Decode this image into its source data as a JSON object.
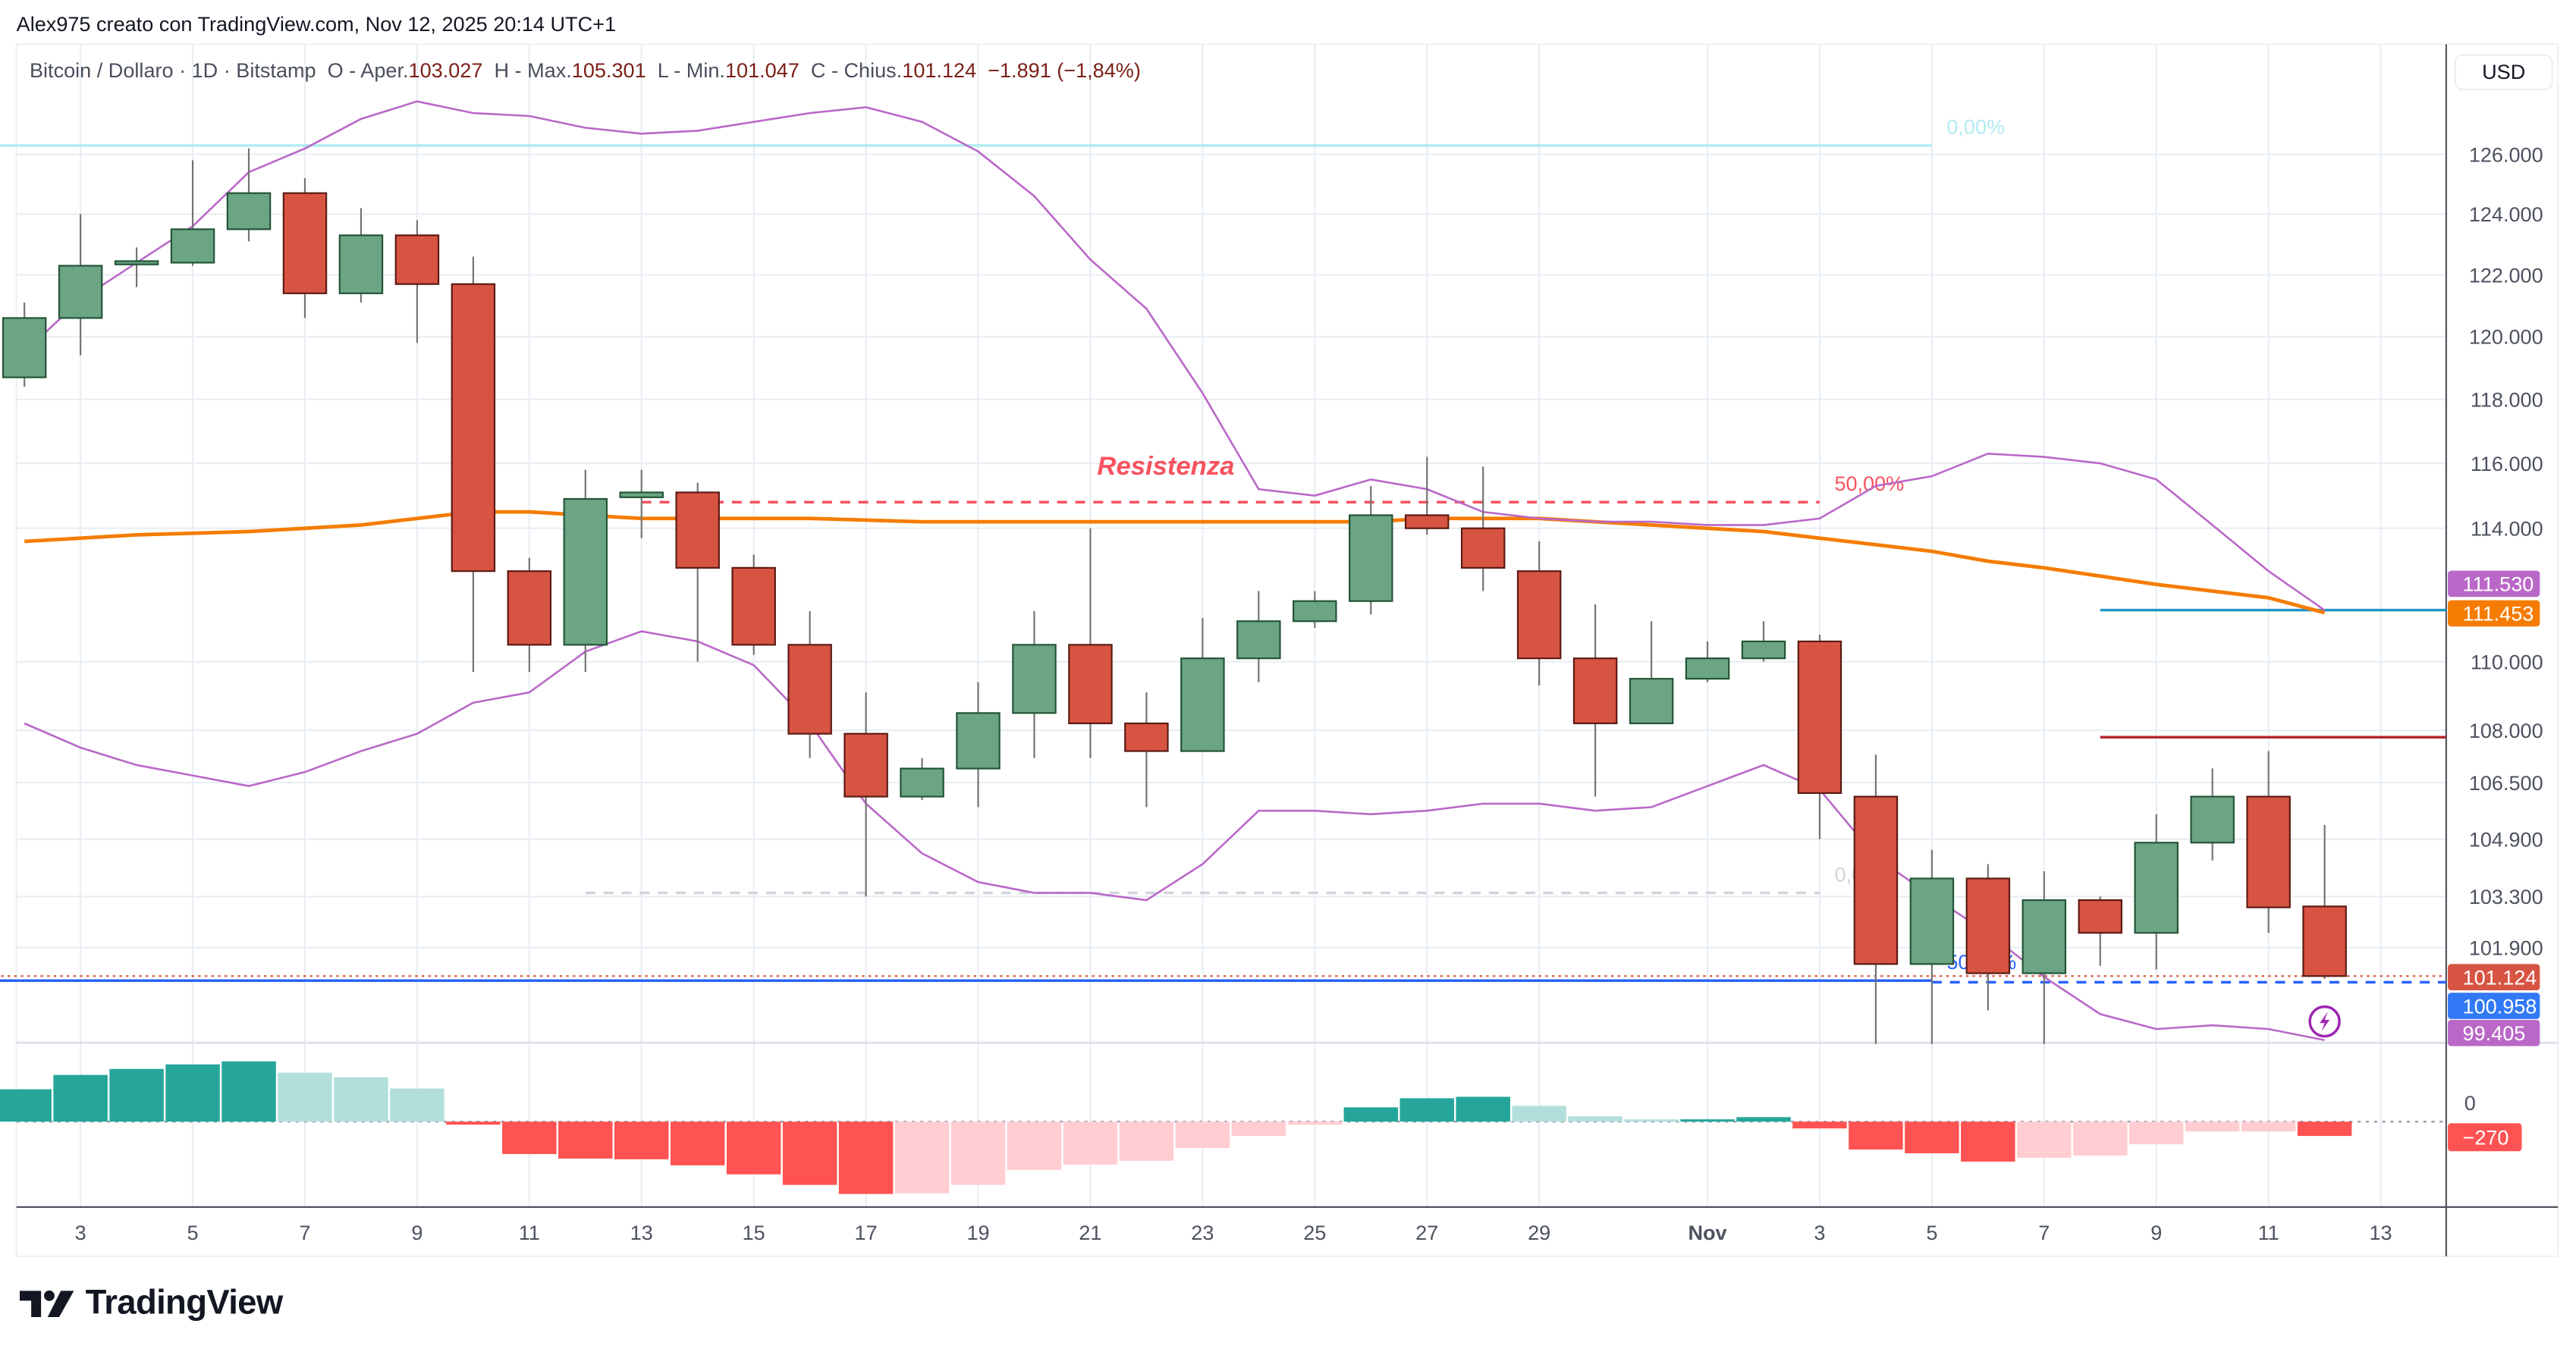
{
  "header": {
    "attribution": "Alex975 creato con TradingView.com, Nov 12, 2025 20:14 UTC+1"
  },
  "legend": {
    "symbol": "Bitcoin / Dollaro · 1D · Bitstamp",
    "open_label": "O - Aper.",
    "open": "103.027",
    "high_label": "H - Max.",
    "high": "105.301",
    "low_label": "L - Min.",
    "low": "101.047",
    "close_label": "C - Chius.",
    "close": "101.124",
    "change": "−1.891 (−1,84%)"
  },
  "currency_button": "USD",
  "brand": {
    "name": "TradingView",
    "icon": "tradingview-logo-icon"
  },
  "colors": {
    "up": "#6ba583",
    "up_border": "#225437",
    "down": "#d75442",
    "down_border": "#5b1a13",
    "band": "#ba68c8",
    "ma": "#f57c00",
    "hist_up_strong": "#26a69a",
    "hist_up_weak": "#b2dfdb",
    "hist_down_strong": "#ff5252",
    "hist_down_weak": "#ffcdd2"
  },
  "chart_data": {
    "type": "candlestick",
    "y_scale": "log",
    "y_ticks": [
      "126.000",
      "124.000",
      "122.000",
      "120.000",
      "118.000",
      "116.000",
      "114.000",
      "110.000",
      "108.000",
      "106.500",
      "104.900",
      "103.300",
      "101.900"
    ],
    "y_tick_values": [
      126000,
      124000,
      122000,
      120000,
      118000,
      116000,
      114000,
      110000,
      108000,
      106500,
      104900,
      103300,
      101900
    ],
    "x_ticks": [
      {
        "date": "2025-10-03",
        "label": "3"
      },
      {
        "date": "2025-10-05",
        "label": "5"
      },
      {
        "date": "2025-10-07",
        "label": "7"
      },
      {
        "date": "2025-10-09",
        "label": "9"
      },
      {
        "date": "2025-10-11",
        "label": "11"
      },
      {
        "date": "2025-10-13",
        "label": "13"
      },
      {
        "date": "2025-10-15",
        "label": "15"
      },
      {
        "date": "2025-10-17",
        "label": "17"
      },
      {
        "date": "2025-10-19",
        "label": "19"
      },
      {
        "date": "2025-10-21",
        "label": "21"
      },
      {
        "date": "2025-10-23",
        "label": "23"
      },
      {
        "date": "2025-10-25",
        "label": "25"
      },
      {
        "date": "2025-10-27",
        "label": "27"
      },
      {
        "date": "2025-10-29",
        "label": "29"
      },
      {
        "date": "2025-11-01",
        "label": "Nov"
      },
      {
        "date": "2025-11-03",
        "label": "3"
      },
      {
        "date": "2025-11-05",
        "label": "5"
      },
      {
        "date": "2025-11-07",
        "label": "7"
      },
      {
        "date": "2025-11-09",
        "label": "9"
      },
      {
        "date": "2025-11-11",
        "label": "11"
      },
      {
        "date": "2025-11-13",
        "label": "13"
      }
    ],
    "start_date": "2025-10-02",
    "candles": [
      [
        118700,
        121100,
        118400,
        120600
      ],
      [
        120600,
        124000,
        119400,
        122300
      ],
      [
        122350,
        122900,
        121600,
        122450
      ],
      [
        122400,
        125800,
        122300,
        123500
      ],
      [
        123500,
        126200,
        123100,
        124700
      ],
      [
        124700,
        125200,
        120600,
        121400
      ],
      [
        121400,
        124200,
        121100,
        123300
      ],
      [
        123300,
        123800,
        119800,
        121700
      ],
      [
        121700,
        122600,
        109700,
        112700
      ],
      [
        112700,
        113100,
        109700,
        110500
      ],
      [
        110500,
        115800,
        109700,
        114900
      ],
      [
        114950,
        115800,
        113700,
        115100
      ],
      [
        115100,
        115400,
        110000,
        112800
      ],
      [
        112800,
        113200,
        110200,
        110500
      ],
      [
        110500,
        111500,
        107200,
        107900
      ],
      [
        107900,
        109100,
        103300,
        106100
      ],
      [
        106100,
        107200,
        106000,
        106900
      ],
      [
        106900,
        109400,
        105800,
        108500
      ],
      [
        108500,
        111500,
        107200,
        110500
      ],
      [
        110500,
        114000,
        107200,
        108200
      ],
      [
        108200,
        109100,
        105800,
        107400
      ],
      [
        107400,
        111300,
        107400,
        110100
      ],
      [
        110100,
        112100,
        109400,
        111200
      ],
      [
        111200,
        112100,
        111000,
        111800
      ],
      [
        111800,
        115300,
        111400,
        114400
      ],
      [
        114400,
        116200,
        113800,
        114000
      ],
      [
        114000,
        115900,
        112100,
        112800
      ],
      [
        112700,
        113600,
        109300,
        110100
      ],
      [
        110100,
        111700,
        106100,
        108200
      ],
      [
        108200,
        111200,
        108200,
        109500
      ],
      [
        109500,
        110600,
        109400,
        110100
      ],
      [
        110100,
        111200,
        110000,
        110600
      ],
      [
        110600,
        110800,
        104900,
        106200
      ],
      [
        106100,
        107300,
        99300,
        101450
      ],
      [
        101450,
        104600,
        99300,
        103800
      ],
      [
        103800,
        104200,
        100200,
        101200
      ],
      [
        101200,
        104000,
        99300,
        103200
      ],
      [
        103200,
        103300,
        101400,
        102300
      ],
      [
        102300,
        105600,
        101300,
        104800
      ],
      [
        104800,
        106900,
        104300,
        106100
      ],
      [
        106100,
        107400,
        102300,
        103000
      ],
      [
        103027,
        105301,
        101047,
        101124
      ]
    ],
    "candle_fields": [
      "open",
      "high",
      "low",
      "close"
    ],
    "bollinger_upper": [
      119500,
      121200,
      122400,
      123600,
      125400,
      126200,
      127200,
      127800,
      127400,
      127300,
      126900,
      126700,
      126800,
      127100,
      127400,
      127600,
      127100,
      126100,
      124600,
      122500,
      120900,
      118200,
      115200,
      115000,
      115500,
      115200,
      114500,
      114300,
      114200,
      114200,
      114100,
      114100,
      114300,
      115300,
      115600,
      116300,
      116200,
      116000,
      115500,
      114100,
      112700,
      111530
    ],
    "bollinger_lower": [
      108200,
      107500,
      107000,
      106700,
      106400,
      106800,
      107400,
      107900,
      108800,
      109100,
      110300,
      110900,
      110600,
      109900,
      108200,
      105900,
      104500,
      103700,
      103400,
      103400,
      103200,
      104200,
      105700,
      105700,
      105600,
      105700,
      105900,
      105900,
      105700,
      105800,
      106400,
      107000,
      106300,
      104400,
      103300,
      102300,
      101100,
      100100,
      99700,
      99800,
      99700,
      99405
    ],
    "moving_average": [
      113600,
      113700,
      113800,
      113850,
      113900,
      114000,
      114100,
      114300,
      114500,
      114500,
      114400,
      114300,
      114300,
      114300,
      114300,
      114250,
      114200,
      114200,
      114200,
      114200,
      114200,
      114200,
      114200,
      114200,
      114200,
      114300,
      114300,
      114300,
      114200,
      114100,
      114000,
      113900,
      113700,
      113500,
      113300,
      113000,
      112800,
      112550,
      112300,
      112100,
      111900,
      111453
    ],
    "histogram": [
      611,
      882,
      995,
      1081,
      1138,
      924,
      839,
      626,
      -57,
      -611,
      -697,
      -711,
      -825,
      -995,
      -1194,
      -1365,
      -1351,
      -1194,
      -910,
      -810,
      -739,
      -498,
      -270,
      -57,
      270,
      441,
      469,
      299,
      100,
      43,
      44,
      85,
      -128,
      -526,
      -597,
      -754,
      -683,
      -640,
      -427,
      -185,
      -185,
      -270
    ],
    "histogram_zero_label": "0",
    "levels": [
      {
        "price": 126300,
        "from": "2025-10-01",
        "to": "2025-11-05",
        "style": "solid",
        "color": "#b2ebf2",
        "label": "0,00%"
      },
      {
        "price": 114800,
        "from": "2025-10-13",
        "to": "2025-11-03",
        "style": "dashed",
        "color": "#f7525f",
        "label": "50,00%"
      },
      {
        "price": 103400,
        "from": "2025-10-12",
        "to": "2025-11-03",
        "style": "dashed",
        "color": "#d1d4dc",
        "label": "0,00%"
      },
      {
        "price": 101000,
        "from": "2025-10-01",
        "to": "2025-11-05",
        "style": "solid",
        "color": "#2962ff",
        "label": "50,00%"
      },
      {
        "price": 100958,
        "from": "2025-11-05",
        "to": "axis",
        "style": "dashed",
        "color": "#2962ff",
        "label": ""
      },
      {
        "price": 111530,
        "from": "2025-11-08",
        "to": "axis",
        "style": "solid",
        "color": "#2196c8",
        "label": ""
      },
      {
        "price": 107800,
        "from": "2025-11-08",
        "to": "axis",
        "style": "solid",
        "color": "#b2282e",
        "label": ""
      },
      {
        "price": 101124,
        "from": "2025-10-01",
        "to": "axis",
        "style": "dotted",
        "color": "#d75442",
        "label": ""
      }
    ],
    "annotation": {
      "text": "Resistenza",
      "color": "#f7525f",
      "date": "2025-10-22",
      "price": 116000
    },
    "price_badges": [
      {
        "value": "111.530",
        "price": 111530,
        "color": "#ba68c8"
      },
      {
        "value": "111.453",
        "price": 111453,
        "color": "#f57c00"
      },
      {
        "value": "101.124",
        "price": 101124,
        "color": "#d75442"
      },
      {
        "value": "100.958",
        "price": 100958,
        "color": "#3179f5"
      },
      {
        "value": "99.405",
        "price": 99405,
        "color": "#ba68c8"
      }
    ],
    "histogram_badge": {
      "value": "−270",
      "color": "#ff5252"
    },
    "alert_icon": "lightning-alert-icon"
  }
}
